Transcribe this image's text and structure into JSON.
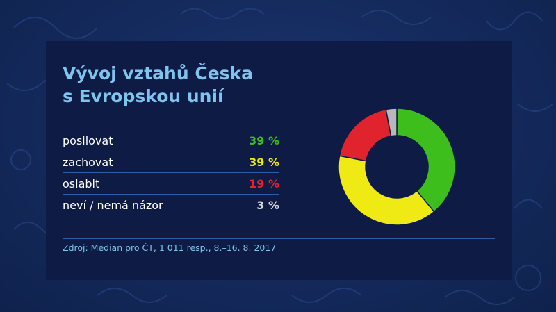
{
  "title_line1": "Vývoj vztahů Česka",
  "title_line2": "s Evropskou unií",
  "source": "Zdroj: Median pro ČT, 1 011 resp., 8.–16. 8. 2017",
  "legend": [
    {
      "label": "posilovat",
      "value": "39 %",
      "color": "#3dbe1c"
    },
    {
      "label": "zachovat",
      "value": "39 %",
      "color": "#f0ea14"
    },
    {
      "label": "oslabit",
      "value": "19 %",
      "color": "#e0232c"
    },
    {
      "label": "neví / nemá názor",
      "value": "3 %",
      "color": "#b8b8b8"
    }
  ],
  "chart_data": {
    "type": "pie",
    "title": "Vývoj vztahů Česka s Evropskou unií",
    "categories": [
      "posilovat",
      "zachovat",
      "oslabit",
      "neví / nemá názor"
    ],
    "values": [
      39,
      39,
      19,
      3
    ],
    "colors": [
      "#3dbe1c",
      "#f0ea14",
      "#e0232c",
      "#b8b8b8"
    ],
    "donut": true,
    "unit": "%"
  }
}
